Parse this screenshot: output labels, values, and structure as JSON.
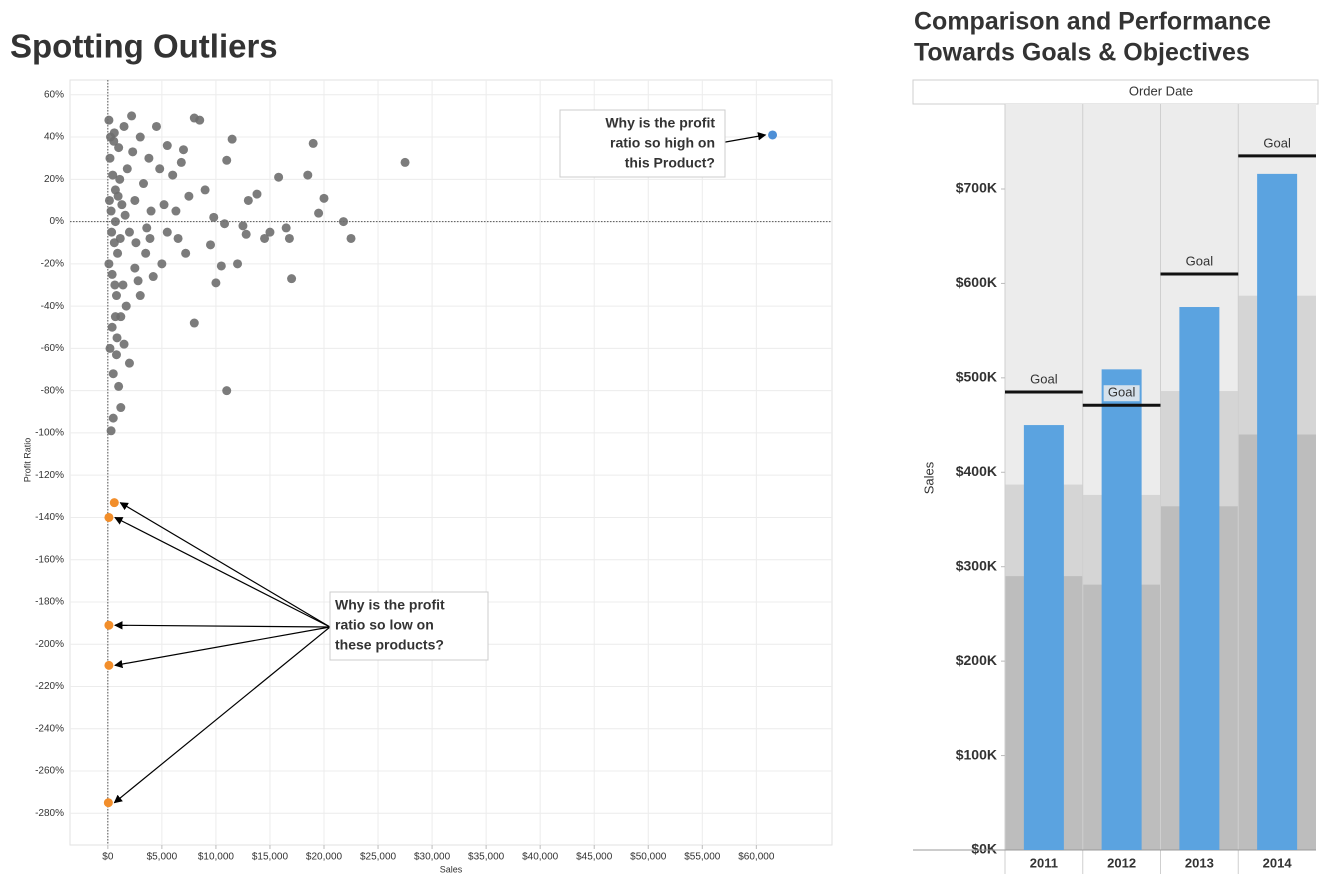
{
  "chart_data": [
    {
      "type": "scatter",
      "title": "Spotting Outliers",
      "x_label": "Sales",
      "y_label": "Profit Ratio",
      "xlim": [
        -3500,
        67000
      ],
      "ylim": [
        -295,
        67
      ],
      "grid": true,
      "xticks": [
        {
          "value": 0,
          "label": "$0"
        },
        {
          "value": 5000,
          "label": "$5,000"
        },
        {
          "value": 10000,
          "label": "$10,000"
        },
        {
          "value": 15000,
          "label": "$15,000"
        },
        {
          "value": 20000,
          "label": "$20,000"
        },
        {
          "value": 25000,
          "label": "$25,000"
        },
        {
          "value": 30000,
          "label": "$30,000"
        },
        {
          "value": 35000,
          "label": "$35,000"
        },
        {
          "value": 40000,
          "label": "$40,000"
        },
        {
          "value": 45000,
          "label": "$45,000"
        },
        {
          "value": 50000,
          "label": "$50,000"
        },
        {
          "value": 55000,
          "label": "$55,000"
        },
        {
          "value": 60000,
          "label": "$60,000"
        }
      ],
      "yticks": [
        {
          "value": 60,
          "label": "60%"
        },
        {
          "value": 40,
          "label": "40%"
        },
        {
          "value": 20,
          "label": "20%"
        },
        {
          "value": 0,
          "label": "0%"
        },
        {
          "value": -20,
          "label": "-20%"
        },
        {
          "value": -40,
          "label": "-40%"
        },
        {
          "value": -60,
          "label": "-60%"
        },
        {
          "value": -80,
          "label": "-80%"
        },
        {
          "value": -100,
          "label": "-100%"
        },
        {
          "value": -120,
          "label": "-120%"
        },
        {
          "value": -140,
          "label": "-140%"
        },
        {
          "value": -160,
          "label": "-160%"
        },
        {
          "value": -180,
          "label": "-180%"
        },
        {
          "value": -200,
          "label": "-200%"
        },
        {
          "value": -220,
          "label": "-220%"
        },
        {
          "value": -240,
          "label": "-240%"
        },
        {
          "value": -260,
          "label": "-260%"
        },
        {
          "value": -280,
          "label": "-280%"
        }
      ],
      "series": [
        {
          "color": "#6e6e6e",
          "x": [
            27500,
            22500,
            21800,
            20000,
            19500,
            19000,
            18500,
            17000,
            16800,
            16500,
            15800,
            15000,
            13800,
            13000,
            12500,
            11000,
            12000,
            11500,
            11000,
            10800,
            10500,
            10000,
            9500,
            9000,
            8500,
            8000,
            8000,
            7500,
            7000,
            6500,
            6000,
            5500,
            5000,
            4500,
            4000,
            4200,
            3800,
            3500,
            3000,
            3000,
            2500,
            2200,
            2000,
            1500,
            1200,
            1000,
            800,
            500,
            300,
            500,
            1200,
            800,
            2000,
            2500,
            1800,
            1500,
            1000,
            700,
            600,
            400,
            300,
            200,
            100,
            600,
            900,
            1400,
            1700,
            2800,
            3300,
            5500,
            6300,
            7200,
            4800,
            5200,
            3600,
            2300,
            1100,
            400,
            200,
            700,
            1300,
            2600,
            3900,
            6800,
            9800,
            14500,
            12800,
            700,
            100,
            150,
            250,
            350,
            450,
            550,
            650,
            850,
            950,
            1150,
            1600
          ],
          "values": [
            28,
            -8,
            0,
            11,
            4,
            37,
            22,
            -27,
            -8,
            -3,
            21,
            -5,
            13,
            10,
            -2,
            -80,
            -20,
            39,
            29,
            -1,
            -21,
            -29,
            -11,
            15,
            48,
            -48,
            49,
            12,
            34,
            -8,
            22,
            36,
            -20,
            45,
            5,
            -26,
            30,
            -15,
            -35,
            40,
            -22,
            50,
            -67,
            -58,
            -88,
            -78,
            -63,
            -93,
            -99,
            -72,
            -45,
            -35,
            -5,
            10,
            25,
            45,
            35,
            15,
            -10,
            -25,
            5,
            30,
            48,
            42,
            -15,
            -30,
            -40,
            -28,
            18,
            -5,
            5,
            -15,
            25,
            8,
            -3,
            33,
            20,
            -50,
            -60,
            0,
            8,
            -10,
            -8,
            28,
            2,
            -8,
            -6,
            -45,
            -20,
            10,
            40,
            -5,
            22,
            38,
            -30,
            -55,
            12,
            -8,
            3
          ]
        },
        {
          "color": "#f28e2b",
          "x": [
            600,
            100,
            100,
            100,
            50
          ],
          "values": [
            -133,
            -140,
            -191,
            -210,
            -275
          ]
        },
        {
          "color": "#4e8fd6",
          "x": [
            61500
          ],
          "values": [
            41
          ]
        }
      ],
      "annotations": [
        {
          "lines": [
            "Why is the profit",
            "ratio so high on",
            "this Product?"
          ]
        },
        {
          "lines": [
            "Why is the profit",
            "ratio so low on",
            "these products?"
          ]
        }
      ]
    },
    {
      "type": "bar",
      "title": [
        "Comparison and Performance",
        "Towards Goals & Objectives"
      ],
      "header": "Order Date",
      "y_label": "Sales",
      "categories": [
        "2011",
        "2012",
        "2013",
        "2014"
      ],
      "values": [
        450000,
        509000,
        575000,
        716000
      ],
      "color": "#5ba3e0",
      "goals": [
        485000,
        471000,
        610000,
        735000
      ],
      "goal_label": "Goal",
      "goal_color": "#111111",
      "bands": [
        {
          "color": "#d5d5d5",
          "values": [
            387000,
            376000,
            486000,
            587000
          ]
        },
        {
          "color": "#bdbdbd",
          "values": [
            290000,
            281000,
            364000,
            440000
          ]
        }
      ],
      "ylim": [
        0,
        790000
      ],
      "yticks": [
        {
          "value": 0,
          "label": "$0K"
        },
        {
          "value": 100000,
          "label": "$100K"
        },
        {
          "value": 200000,
          "label": "$200K"
        },
        {
          "value": 300000,
          "label": "$300K"
        },
        {
          "value": 400000,
          "label": "$400K"
        },
        {
          "value": 500000,
          "label": "$500K"
        },
        {
          "value": 600000,
          "label": "$600K"
        },
        {
          "value": 700000,
          "label": "$700K"
        }
      ]
    }
  ]
}
